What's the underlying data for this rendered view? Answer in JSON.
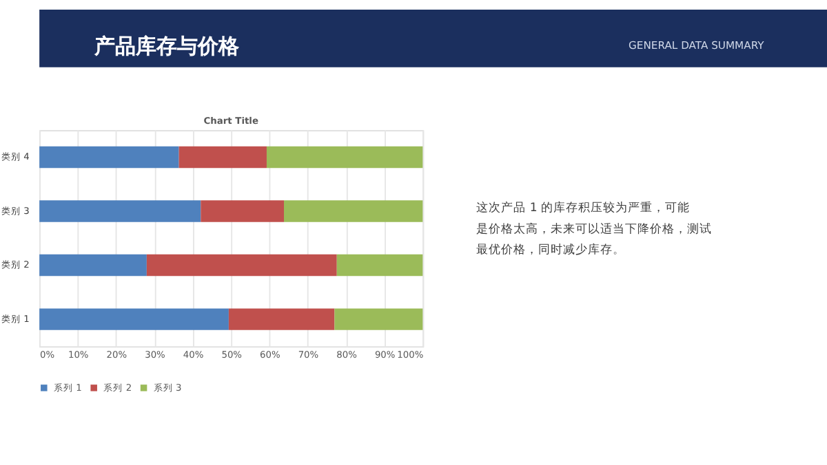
{
  "chart_data": {
    "type": "bar",
    "orientation": "horizontal",
    "stacked": true,
    "title": "产品库存与价格",
    "subtitle": "GENERAL DATA SUMMARY",
    "annotations": [
      "Chart Title",
      "这次产品 1 的库存积压较为严重，可能是价格太高，未来可以适当下降价格，测试最优价格，同时减少库存。"
    ],
    "categories": [
      "类别 4",
      "类别 3",
      "类别 2",
      "类别 1"
    ],
    "series": [
      {
        "name": "系列 1",
        "color": "#4f81bd",
        "values": [
          36.4,
          42.1,
          28.0,
          49.4
        ]
      },
      {
        "name": "系列 2",
        "color": "#c0504d",
        "values": [
          22.9,
          21.7,
          49.6,
          27.6
        ]
      },
      {
        "name": "系列 3",
        "color": "#9bbb59",
        "values": [
          40.7,
          36.2,
          22.4,
          23.0
        ]
      }
    ],
    "xlim": [
      0,
      100
    ],
    "xticks": [
      {
        "value": 0,
        "label": "0%"
      },
      {
        "value": 10,
        "label": "10%"
      },
      {
        "value": 20,
        "label": "20%"
      },
      {
        "value": 30,
        "label": "30%"
      },
      {
        "value": 40,
        "label": "40%"
      },
      {
        "value": 50,
        "label": "50%"
      },
      {
        "value": 60,
        "label": "60%"
      },
      {
        "value": 70,
        "label": "70%"
      },
      {
        "value": 80,
        "label": "80%"
      },
      {
        "value": 90,
        "label": "90%"
      },
      {
        "value": 100,
        "label": "100%"
      }
    ],
    "grid": "x",
    "legend": "bottom"
  }
}
